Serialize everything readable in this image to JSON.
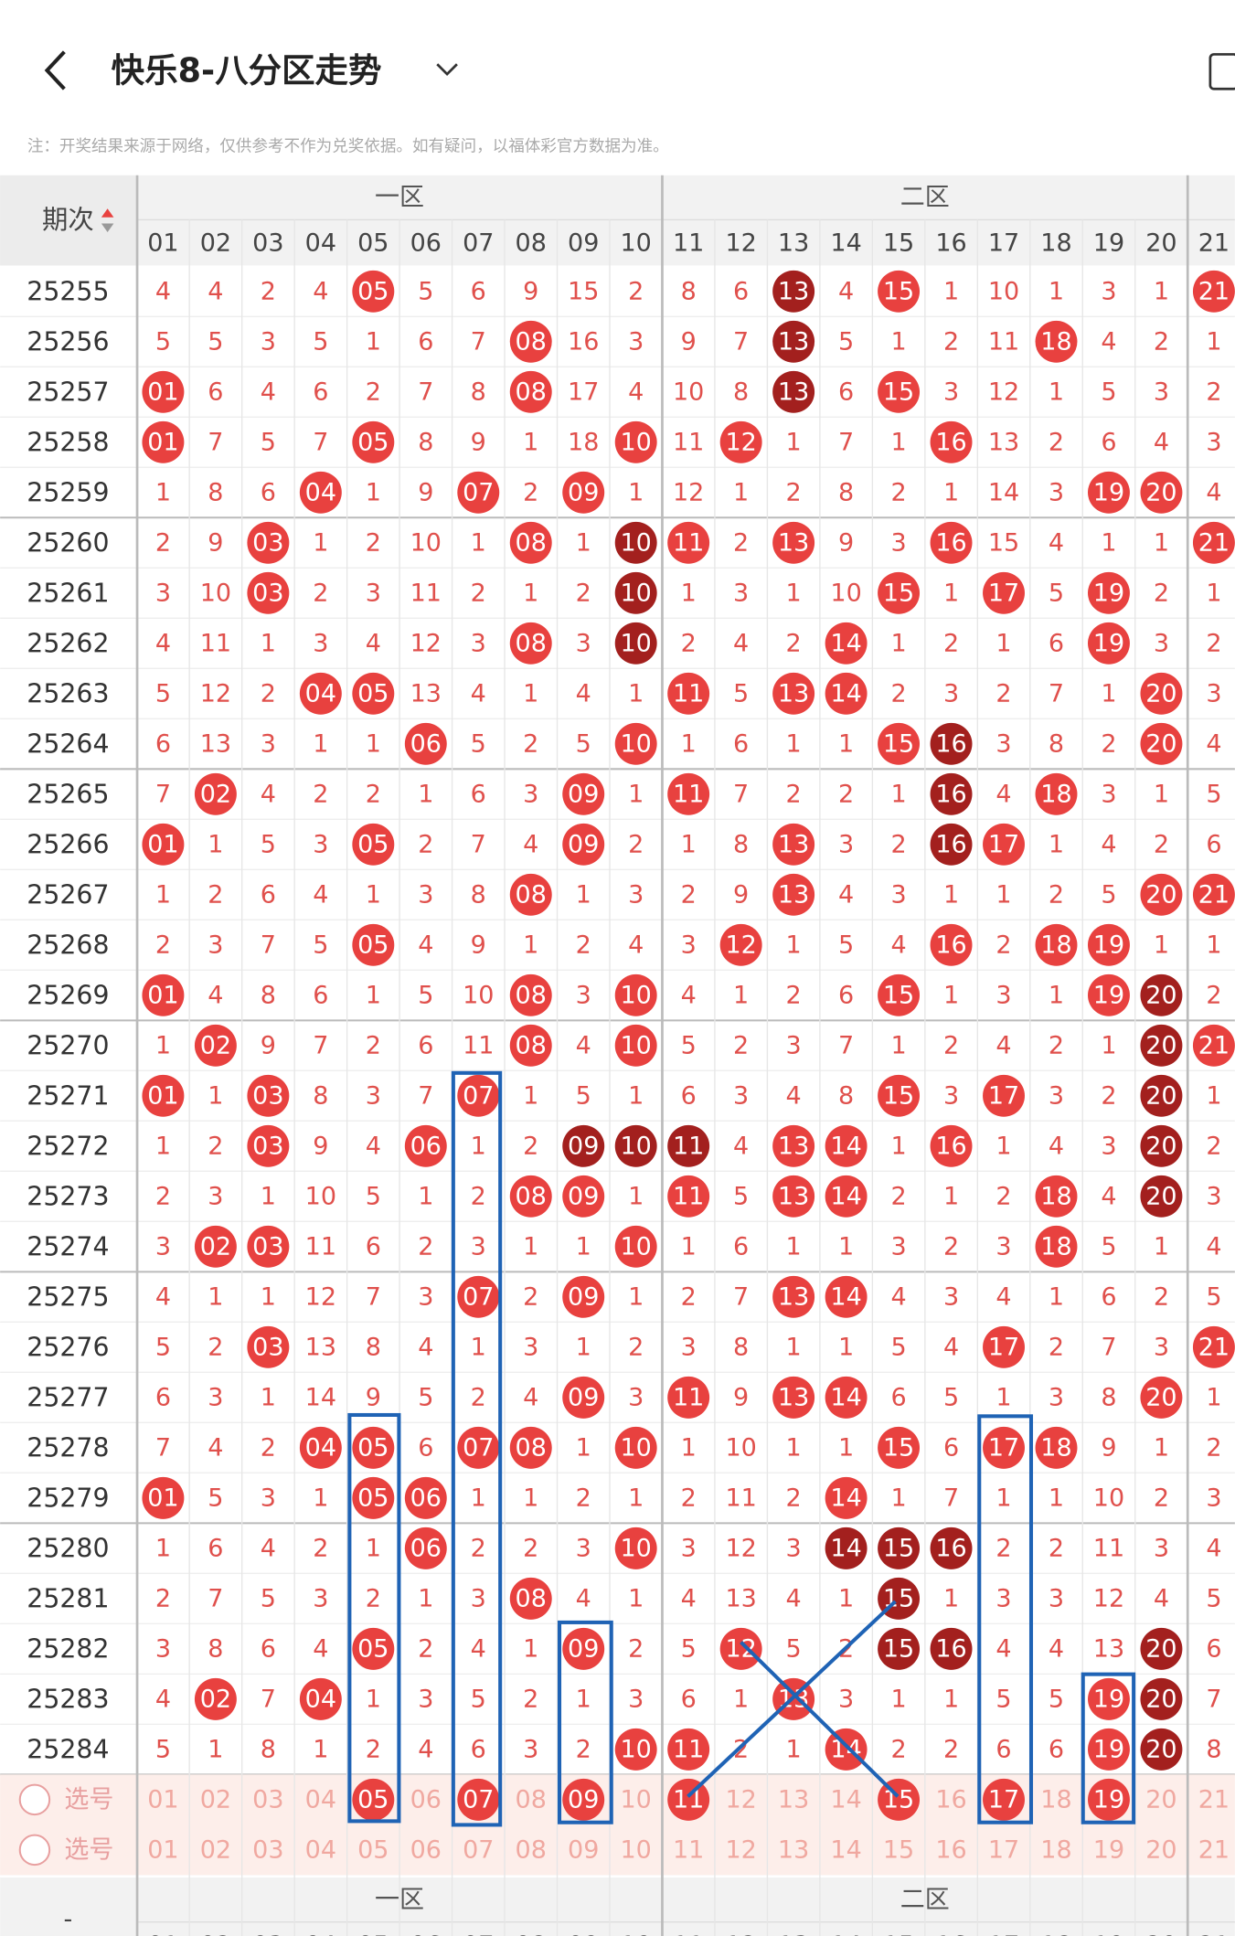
{
  "header": {
    "title": "快乐8-八分区走势",
    "note": "注：开奖结果来源于网络，仅供参考不作为兑奖依据。如有疑问，以福体彩官方数据为准。"
  },
  "table": {
    "head": "期次",
    "zones": [
      "一区",
      "二区"
    ],
    "columns": [
      "01",
      "02",
      "03",
      "04",
      "05",
      "06",
      "07",
      "08",
      "09",
      "10",
      "11",
      "12",
      "13",
      "14",
      "15",
      "16",
      "17",
      "18",
      "19",
      "20",
      "21"
    ],
    "rows": [
      {
        "period": "25255",
        "cells": [
          "4",
          "4",
          "2",
          "4",
          "05",
          "5",
          "6",
          "9",
          "15",
          "2",
          "8",
          "6",
          "13",
          "4",
          "15",
          "1",
          "10",
          "1",
          "3",
          "1",
          "21"
        ],
        "hits": [
          4,
          12,
          14,
          20
        ],
        "dark": [
          12
        ]
      },
      {
        "period": "25256",
        "cells": [
          "5",
          "5",
          "3",
          "5",
          "1",
          "6",
          "7",
          "08",
          "16",
          "3",
          "9",
          "7",
          "13",
          "5",
          "1",
          "2",
          "11",
          "18",
          "4",
          "2",
          "1"
        ],
        "hits": [
          7,
          12,
          17
        ],
        "dark": [
          12
        ]
      },
      {
        "period": "25257",
        "cells": [
          "01",
          "6",
          "4",
          "6",
          "2",
          "7",
          "8",
          "08",
          "17",
          "4",
          "10",
          "8",
          "13",
          "6",
          "15",
          "3",
          "12",
          "1",
          "5",
          "3",
          "2"
        ],
        "hits": [
          0,
          7,
          12,
          14
        ],
        "dark": [
          12
        ]
      },
      {
        "period": "25258",
        "cells": [
          "01",
          "7",
          "5",
          "7",
          "05",
          "8",
          "9",
          "1",
          "18",
          "10",
          "11",
          "12",
          "1",
          "7",
          "1",
          "16",
          "13",
          "2",
          "6",
          "4",
          "3"
        ],
        "hits": [
          0,
          4,
          9,
          11,
          15
        ],
        "dark": []
      },
      {
        "period": "25259",
        "cells": [
          "1",
          "8",
          "6",
          "04",
          "1",
          "9",
          "07",
          "2",
          "09",
          "1",
          "12",
          "1",
          "2",
          "8",
          "2",
          "1",
          "14",
          "3",
          "19",
          "20",
          "4"
        ],
        "hits": [
          3,
          6,
          8,
          18,
          19
        ],
        "dark": []
      },
      {
        "period": "25260",
        "cells": [
          "2",
          "9",
          "03",
          "1",
          "2",
          "10",
          "1",
          "08",
          "1",
          "10",
          "11",
          "2",
          "13",
          "9",
          "3",
          "16",
          "15",
          "4",
          "1",
          "1",
          "21"
        ],
        "hits": [
          2,
          7,
          9,
          10,
          12,
          15,
          20
        ],
        "dark": [
          9
        ]
      },
      {
        "period": "25261",
        "cells": [
          "3",
          "10",
          "03",
          "2",
          "3",
          "11",
          "2",
          "1",
          "2",
          "10",
          "1",
          "3",
          "1",
          "10",
          "15",
          "1",
          "17",
          "5",
          "19",
          "2",
          "1"
        ],
        "hits": [
          2,
          9,
          14,
          16,
          18
        ],
        "dark": [
          9
        ]
      },
      {
        "period": "25262",
        "cells": [
          "4",
          "11",
          "1",
          "3",
          "4",
          "12",
          "3",
          "08",
          "3",
          "10",
          "2",
          "4",
          "2",
          "14",
          "1",
          "2",
          "1",
          "6",
          "19",
          "3",
          "2"
        ],
        "hits": [
          7,
          9,
          13,
          18
        ],
        "dark": [
          9
        ]
      },
      {
        "period": "25263",
        "cells": [
          "5",
          "12",
          "2",
          "04",
          "05",
          "13",
          "4",
          "1",
          "4",
          "1",
          "11",
          "5",
          "13",
          "14",
          "2",
          "3",
          "2",
          "7",
          "1",
          "20",
          "3"
        ],
        "hits": [
          3,
          4,
          10,
          12,
          13,
          19
        ],
        "dark": []
      },
      {
        "period": "25264",
        "cells": [
          "6",
          "13",
          "3",
          "1",
          "1",
          "06",
          "5",
          "2",
          "5",
          "10",
          "1",
          "6",
          "1",
          "1",
          "15",
          "16",
          "3",
          "8",
          "2",
          "20",
          "4"
        ],
        "hits": [
          5,
          9,
          14,
          15,
          19
        ],
        "dark": [
          15
        ]
      },
      {
        "period": "25265",
        "cells": [
          "7",
          "02",
          "4",
          "2",
          "2",
          "1",
          "6",
          "3",
          "09",
          "1",
          "11",
          "7",
          "2",
          "2",
          "1",
          "16",
          "4",
          "18",
          "3",
          "1",
          "5"
        ],
        "hits": [
          1,
          8,
          10,
          15,
          17
        ],
        "dark": [
          15
        ]
      },
      {
        "period": "25266",
        "cells": [
          "01",
          "1",
          "5",
          "3",
          "05",
          "2",
          "7",
          "4",
          "09",
          "2",
          "1",
          "8",
          "13",
          "3",
          "2",
          "16",
          "17",
          "1",
          "4",
          "2",
          "6"
        ],
        "hits": [
          0,
          4,
          8,
          12,
          15,
          16
        ],
        "dark": [
          15
        ]
      },
      {
        "period": "25267",
        "cells": [
          "1",
          "2",
          "6",
          "4",
          "1",
          "3",
          "8",
          "08",
          "1",
          "3",
          "2",
          "9",
          "13",
          "4",
          "3",
          "1",
          "1",
          "2",
          "5",
          "20",
          "21"
        ],
        "hits": [
          7,
          12,
          19,
          20
        ],
        "dark": []
      },
      {
        "period": "25268",
        "cells": [
          "2",
          "3",
          "7",
          "5",
          "05",
          "4",
          "9",
          "1",
          "2",
          "4",
          "3",
          "12",
          "1",
          "5",
          "4",
          "16",
          "2",
          "18",
          "19",
          "1",
          "1"
        ],
        "hits": [
          4,
          11,
          15,
          17,
          18
        ],
        "dark": []
      },
      {
        "period": "25269",
        "cells": [
          "01",
          "4",
          "8",
          "6",
          "1",
          "5",
          "10",
          "08",
          "3",
          "10",
          "4",
          "1",
          "2",
          "6",
          "15",
          "1",
          "3",
          "1",
          "19",
          "20",
          "2"
        ],
        "hits": [
          0,
          7,
          9,
          14,
          18,
          19
        ],
        "dark": [
          19
        ]
      },
      {
        "period": "25270",
        "cells": [
          "1",
          "02",
          "9",
          "7",
          "2",
          "6",
          "11",
          "08",
          "4",
          "10",
          "5",
          "2",
          "3",
          "7",
          "1",
          "2",
          "4",
          "2",
          "1",
          "20",
          "21"
        ],
        "hits": [
          1,
          7,
          9,
          19,
          20
        ],
        "dark": [
          19
        ]
      },
      {
        "period": "25271",
        "cells": [
          "01",
          "1",
          "03",
          "8",
          "3",
          "7",
          "07",
          "1",
          "5",
          "1",
          "6",
          "3",
          "4",
          "8",
          "15",
          "3",
          "17",
          "3",
          "2",
          "20",
          "1"
        ],
        "hits": [
          0,
          2,
          6,
          14,
          16,
          19
        ],
        "dark": [
          19
        ]
      },
      {
        "period": "25272",
        "cells": [
          "1",
          "2",
          "03",
          "9",
          "4",
          "06",
          "1",
          "2",
          "09",
          "10",
          "11",
          "4",
          "13",
          "14",
          "1",
          "16",
          "1",
          "4",
          "3",
          "20",
          "2"
        ],
        "hits": [
          2,
          5,
          8,
          9,
          10,
          12,
          13,
          15,
          19
        ],
        "dark": [
          8,
          9,
          10,
          19
        ]
      },
      {
        "period": "25273",
        "cells": [
          "2",
          "3",
          "1",
          "10",
          "5",
          "1",
          "2",
          "08",
          "09",
          "1",
          "11",
          "5",
          "13",
          "14",
          "2",
          "1",
          "2",
          "18",
          "4",
          "20",
          "3"
        ],
        "hits": [
          7,
          8,
          10,
          12,
          13,
          17,
          19
        ],
        "dark": [
          19
        ]
      },
      {
        "period": "25274",
        "cells": [
          "3",
          "02",
          "03",
          "11",
          "6",
          "2",
          "3",
          "1",
          "1",
          "10",
          "1",
          "6",
          "1",
          "1",
          "3",
          "2",
          "3",
          "18",
          "5",
          "1",
          "4"
        ],
        "hits": [
          1,
          2,
          9,
          17
        ],
        "dark": []
      },
      {
        "period": "25275",
        "cells": [
          "4",
          "1",
          "1",
          "12",
          "7",
          "3",
          "07",
          "2",
          "09",
          "1",
          "2",
          "7",
          "13",
          "14",
          "4",
          "3",
          "4",
          "1",
          "6",
          "2",
          "5"
        ],
        "hits": [
          6,
          8,
          12,
          13
        ],
        "dark": []
      },
      {
        "period": "25276",
        "cells": [
          "5",
          "2",
          "03",
          "13",
          "8",
          "4",
          "1",
          "3",
          "1",
          "2",
          "3",
          "8",
          "1",
          "1",
          "5",
          "4",
          "17",
          "2",
          "7",
          "3",
          "21"
        ],
        "hits": [
          2,
          16,
          20
        ],
        "dark": []
      },
      {
        "period": "25277",
        "cells": [
          "6",
          "3",
          "1",
          "14",
          "9",
          "5",
          "2",
          "4",
          "09",
          "3",
          "11",
          "9",
          "13",
          "14",
          "6",
          "5",
          "1",
          "3",
          "8",
          "20",
          "1"
        ],
        "hits": [
          8,
          10,
          12,
          13,
          19
        ],
        "dark": []
      },
      {
        "period": "25278",
        "cells": [
          "7",
          "4",
          "2",
          "04",
          "05",
          "6",
          "07",
          "08",
          "1",
          "10",
          "1",
          "10",
          "1",
          "1",
          "15",
          "6",
          "17",
          "18",
          "9",
          "1",
          "2"
        ],
        "hits": [
          3,
          4,
          6,
          7,
          9,
          14,
          16,
          17
        ],
        "dark": []
      },
      {
        "period": "25279",
        "cells": [
          "01",
          "5",
          "3",
          "1",
          "05",
          "06",
          "1",
          "1",
          "2",
          "1",
          "2",
          "11",
          "2",
          "14",
          "1",
          "7",
          "1",
          "1",
          "10",
          "2",
          "3"
        ],
        "hits": [
          0,
          4,
          5,
          13
        ],
        "dark": []
      },
      {
        "period": "25280",
        "cells": [
          "1",
          "6",
          "4",
          "2",
          "1",
          "06",
          "2",
          "2",
          "3",
          "10",
          "3",
          "12",
          "3",
          "14",
          "15",
          "16",
          "2",
          "2",
          "11",
          "3",
          "4"
        ],
        "hits": [
          5,
          9,
          13,
          14,
          15
        ],
        "dark": [
          13,
          14,
          15
        ]
      },
      {
        "period": "25281",
        "cells": [
          "2",
          "7",
          "5",
          "3",
          "2",
          "1",
          "3",
          "08",
          "4",
          "1",
          "4",
          "13",
          "4",
          "1",
          "15",
          "1",
          "3",
          "3",
          "12",
          "4",
          "5"
        ],
        "hits": [
          7,
          14
        ],
        "dark": [
          14
        ]
      },
      {
        "period": "25282",
        "cells": [
          "3",
          "8",
          "6",
          "4",
          "05",
          "2",
          "4",
          "1",
          "09",
          "2",
          "5",
          "12",
          "5",
          "2",
          "15",
          "16",
          "4",
          "4",
          "13",
          "20",
          "6"
        ],
        "hits": [
          4,
          8,
          11,
          14,
          15,
          19
        ],
        "dark": [
          14,
          15,
          19
        ]
      },
      {
        "period": "25283",
        "cells": [
          "4",
          "02",
          "7",
          "04",
          "1",
          "3",
          "5",
          "2",
          "1",
          "3",
          "6",
          "1",
          "13",
          "3",
          "1",
          "1",
          "5",
          "5",
          "19",
          "20",
          "7"
        ],
        "hits": [
          1,
          3,
          12,
          18,
          19
        ],
        "dark": [
          19
        ]
      },
      {
        "period": "25284",
        "cells": [
          "5",
          "1",
          "8",
          "1",
          "2",
          "4",
          "6",
          "3",
          "2",
          "10",
          "11",
          "2",
          "1",
          "14",
          "2",
          "2",
          "6",
          "6",
          "19",
          "20",
          "8"
        ],
        "hits": [
          9,
          10,
          13,
          18,
          19
        ],
        "dark": [
          19
        ]
      }
    ],
    "select_rows": [
      {
        "label": "选号",
        "cells": [
          "01",
          "02",
          "03",
          "04",
          "05",
          "06",
          "07",
          "08",
          "09",
          "10",
          "11",
          "12",
          "13",
          "14",
          "15",
          "16",
          "17",
          "18",
          "19",
          "20",
          "21"
        ],
        "hits": [
          4,
          6,
          8,
          10,
          14,
          16,
          18
        ]
      },
      {
        "label": "选号",
        "cells": [
          "01",
          "02",
          "03",
          "04",
          "05",
          "06",
          "07",
          "08",
          "09",
          "10",
          "11",
          "12",
          "13",
          "14",
          "15",
          "16",
          "17",
          "18",
          "19",
          "20",
          "21"
        ],
        "hits": []
      }
    ],
    "footer_label": "-"
  }
}
